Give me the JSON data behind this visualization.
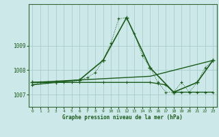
{
  "title": "Graphe pression niveau de la mer (hPa)",
  "background_color": "#cde8e8",
  "grid_color": "#aacccc",
  "line_color": "#1a5c1a",
  "xlim": [
    -0.5,
    23.5
  ],
  "ylim": [
    1006.5,
    1010.7
  ],
  "yticks": [
    1007,
    1008,
    1009
  ],
  "xticks": [
    0,
    1,
    2,
    3,
    4,
    5,
    6,
    7,
    8,
    9,
    10,
    11,
    12,
    13,
    14,
    15,
    16,
    17,
    18,
    19,
    20,
    21,
    22,
    23
  ],
  "series1_x": [
    0,
    1,
    2,
    3,
    4,
    5,
    6,
    7,
    8,
    9,
    10,
    11,
    12,
    13,
    14,
    15,
    16,
    17,
    18,
    19,
    20,
    21,
    22,
    23
  ],
  "series1_y": [
    1007.4,
    1007.5,
    1007.5,
    1007.5,
    1007.5,
    1007.5,
    1007.6,
    1007.7,
    1007.9,
    1008.4,
    1009.1,
    1010.1,
    1010.15,
    1009.5,
    1008.6,
    1008.1,
    1007.5,
    1007.1,
    1007.1,
    1007.5,
    1007.1,
    1007.5,
    1008.1,
    1008.4
  ],
  "series2_x": [
    0,
    3,
    6,
    9,
    12,
    15,
    18,
    21,
    23
  ],
  "series2_y": [
    1007.5,
    1007.5,
    1007.6,
    1008.4,
    1010.15,
    1008.1,
    1007.1,
    1007.5,
    1008.4
  ],
  "series3_x": [
    0,
    15,
    23
  ],
  "series3_y": [
    1007.5,
    1007.75,
    1008.4
  ],
  "series4_x": [
    0,
    3,
    6,
    9,
    12,
    15,
    16,
    17,
    18,
    19,
    20,
    21,
    22,
    23
  ],
  "series4_y": [
    1007.4,
    1007.5,
    1007.5,
    1007.5,
    1007.5,
    1007.5,
    1007.45,
    1007.4,
    1007.1,
    1007.1,
    1007.1,
    1007.1,
    1007.1,
    1007.1
  ]
}
